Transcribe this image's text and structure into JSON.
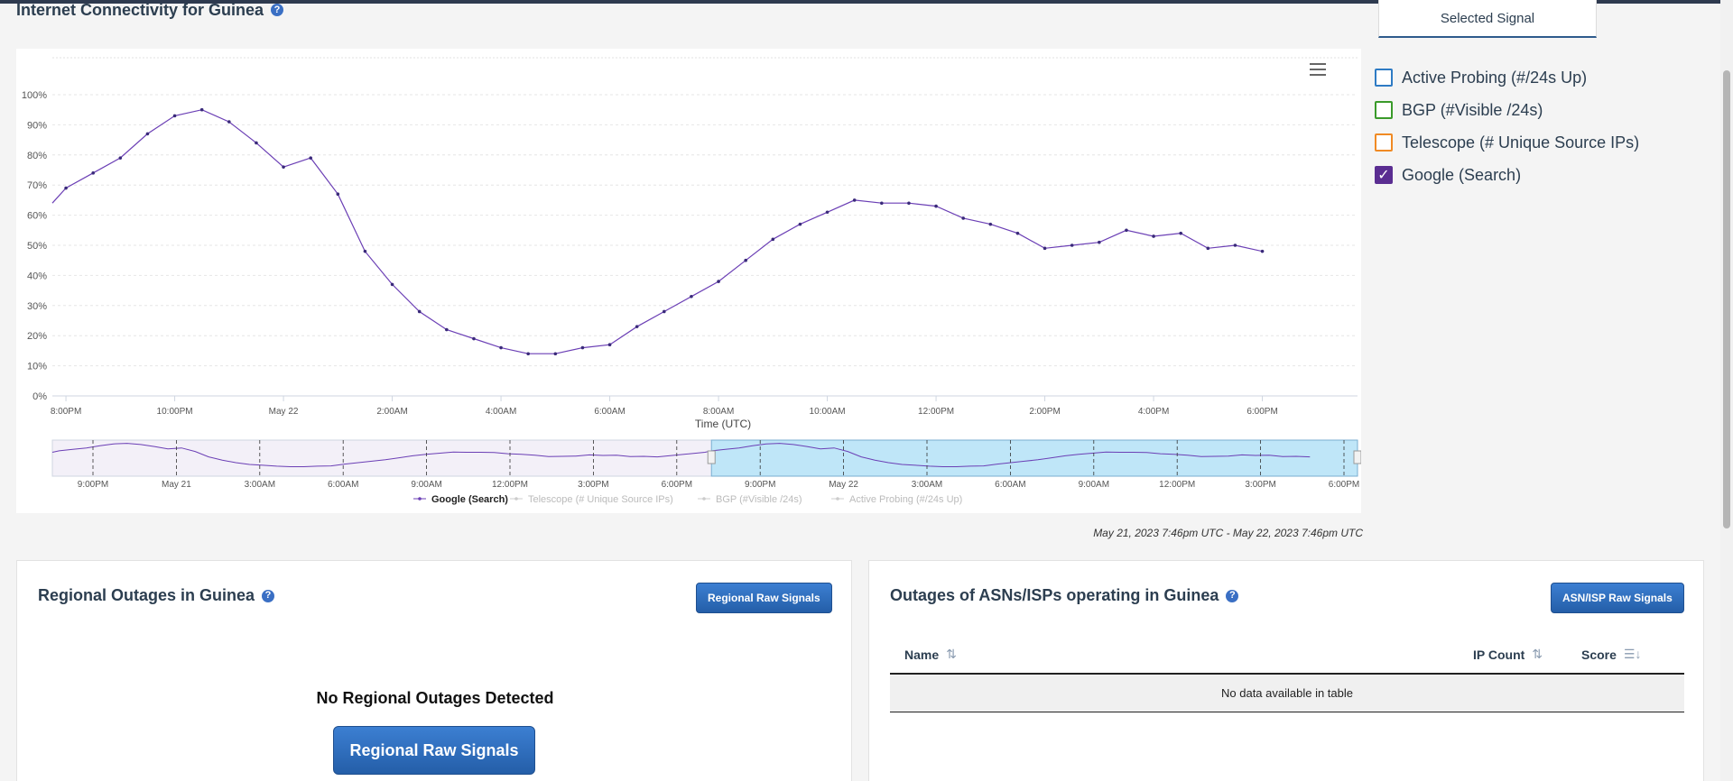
{
  "page": {
    "title": "Internet Connectivity for Guinea",
    "help": "?"
  },
  "signal_panel": {
    "tab_label": "Selected Signal",
    "items": [
      {
        "label": "Active Probing (#/24s Up)",
        "checked": false,
        "color": "#2e7bc4"
      },
      {
        "label": "BGP (#Visible /24s)",
        "checked": false,
        "color": "#3a9a2a"
      },
      {
        "label": "Telescope (# Unique Source IPs)",
        "checked": false,
        "color": "#f08a24"
      },
      {
        "label": "Google (Search)",
        "checked": true,
        "color": "#5a2d91"
      }
    ]
  },
  "chart_data": {
    "type": "line",
    "title": "Internet Connectivity for Guinea",
    "xlabel": "Time (UTC)",
    "ylabel": "",
    "ylim": [
      0,
      100
    ],
    "yticks": [
      "0%",
      "10%",
      "20%",
      "30%",
      "40%",
      "50%",
      "60%",
      "70%",
      "80%",
      "90%",
      "100%"
    ],
    "xticks": [
      "8:00PM",
      "10:00PM",
      "May 22",
      "2:00AM",
      "4:00AM",
      "6:00AM",
      "8:00AM",
      "10:00AM",
      "12:00PM",
      "2:00PM",
      "4:00PM",
      "6:00PM"
    ],
    "x_start_hours": -0.25,
    "x_end_hours": 23.75,
    "series": [
      {
        "name": "Google (Search)",
        "color": "#6b3fb5",
        "x_hours": [
          -0.25,
          0,
          0.5,
          1,
          1.5,
          2,
          2.5,
          3,
          3.5,
          4,
          4.5,
          5,
          5.5,
          6,
          6.5,
          7,
          7.5,
          8,
          8.5,
          9,
          9.5,
          10,
          10.5,
          11,
          11.5,
          12,
          12.5,
          13,
          13.5,
          14,
          14.5,
          15,
          15.5,
          16,
          16.5,
          17,
          17.5,
          18,
          18.5,
          19,
          19.5,
          20,
          20.5,
          21,
          21.5,
          22
        ],
        "values": [
          64,
          69,
          74,
          79,
          87,
          93,
          95,
          91,
          84,
          76,
          79,
          67,
          48,
          37,
          28,
          22,
          19,
          16,
          14,
          14,
          16,
          17,
          23,
          28,
          33,
          38,
          45,
          52,
          57,
          61,
          65,
          64,
          64,
          63,
          59,
          57,
          54,
          49,
          50,
          51,
          55,
          53,
          54,
          49,
          50,
          48
        ]
      }
    ],
    "navigator": {
      "xticks": [
        "9:00PM",
        "May 21",
        "3:00AM",
        "6:00AM",
        "9:00AM",
        "12:00PM",
        "3:00PM",
        "6:00PM",
        "9:00PM",
        "May 22",
        "3:00AM",
        "6:00AM",
        "9:00AM",
        "12:00PM",
        "3:00PM",
        "6:00PM"
      ],
      "selected_from_fraction": 0.505,
      "selected_to_fraction": 1.0
    },
    "legend": [
      {
        "name": "Google (Search)",
        "active": true
      },
      {
        "name": "Telescope (# Unique Source IPs)",
        "active": false
      },
      {
        "name": "BGP (#Visible /24s)",
        "active": false
      },
      {
        "name": "Active Probing (#/24s Up)",
        "active": false
      }
    ]
  },
  "range_text": "May 21, 2023 7:46pm UTC - May 22, 2023 7:46pm UTC",
  "regional": {
    "title": "Regional Outages in Guinea",
    "button_small": "Regional Raw Signals",
    "empty_message": "No Regional Outages Detected",
    "button_big": "Regional Raw Signals"
  },
  "asn": {
    "title": "Outages of ASNs/ISPs operating in Guinea",
    "button_small": "ASN/ISP Raw Signals",
    "columns": {
      "name": "Name",
      "ip_count": "IP Count",
      "score": "Score"
    },
    "empty_message": "No data available in table"
  },
  "colors": {
    "accent": "#2e5b8c",
    "series": "#6b3fb5",
    "navigator_selection": "#bfe6f8"
  }
}
